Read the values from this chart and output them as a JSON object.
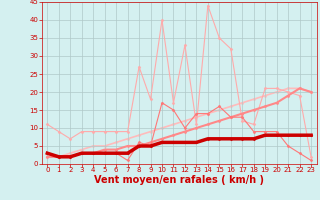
{
  "x": [
    0,
    1,
    2,
    3,
    4,
    5,
    6,
    7,
    8,
    9,
    10,
    11,
    12,
    13,
    14,
    15,
    16,
    17,
    18,
    19,
    20,
    21,
    22,
    23
  ],
  "series": [
    {
      "name": "light_pink_jagged",
      "color": "#ffaaaa",
      "linewidth": 0.8,
      "marker": "D",
      "markersize": 1.5,
      "zorder": 2,
      "y": [
        11,
        9,
        7,
        9,
        9,
        9,
        9,
        9,
        27,
        18,
        40,
        17,
        33,
        11,
        44,
        35,
        32,
        12,
        11,
        21,
        21,
        20,
        19,
        2
      ]
    },
    {
      "name": "medium_pink_jagged",
      "color": "#ff7777",
      "linewidth": 0.8,
      "marker": "D",
      "markersize": 1.5,
      "zorder": 3,
      "y": [
        3,
        2,
        2,
        3,
        3,
        3,
        3,
        1,
        6,
        5,
        17,
        15,
        10,
        14,
        14,
        16,
        13,
        13,
        9,
        9,
        9,
        5,
        3,
        1
      ]
    },
    {
      "name": "light_pink_diagonal",
      "color": "#ffbbbb",
      "linewidth": 1.2,
      "marker": "D",
      "markersize": 1.5,
      "zorder": 1,
      "y": [
        2,
        2,
        3,
        4,
        5,
        5,
        6,
        7,
        8,
        9,
        10,
        11,
        12,
        13,
        14,
        15,
        16,
        17,
        18,
        19,
        20,
        21,
        21,
        20
      ]
    },
    {
      "name": "medium_pink_diagonal",
      "color": "#ff8888",
      "linewidth": 1.5,
      "marker": "D",
      "markersize": 1.5,
      "zorder": 2,
      "y": [
        2,
        2,
        2,
        3,
        3,
        4,
        4,
        5,
        5,
        6,
        7,
        8,
        9,
        10,
        11,
        12,
        13,
        14,
        15,
        16,
        17,
        19,
        21,
        20
      ]
    },
    {
      "name": "dark_red_bold",
      "color": "#cc0000",
      "linewidth": 2.5,
      "marker": "D",
      "markersize": 1.5,
      "zorder": 4,
      "y": [
        3,
        2,
        2,
        3,
        3,
        3,
        3,
        3,
        5,
        5,
        6,
        6,
        6,
        6,
        7,
        7,
        7,
        7,
        7,
        8,
        8,
        8,
        8,
        8
      ]
    }
  ],
  "xlabel": "Vent moyen/en rafales ( km/h )",
  "xlabel_color": "#cc0000",
  "xlabel_fontsize": 7,
  "xlim": [
    -0.5,
    23.5
  ],
  "ylim": [
    0,
    45
  ],
  "yticks": [
    0,
    5,
    10,
    15,
    20,
    25,
    30,
    35,
    40,
    45
  ],
  "xticks": [
    0,
    1,
    2,
    3,
    4,
    5,
    6,
    7,
    8,
    9,
    10,
    11,
    12,
    13,
    14,
    15,
    16,
    17,
    18,
    19,
    20,
    21,
    22,
    23
  ],
  "background_color": "#d4f0f0",
  "grid_color": "#b0c8c8",
  "tick_color": "#cc0000",
  "tick_fontsize": 5,
  "spine_color": "#cc0000"
}
